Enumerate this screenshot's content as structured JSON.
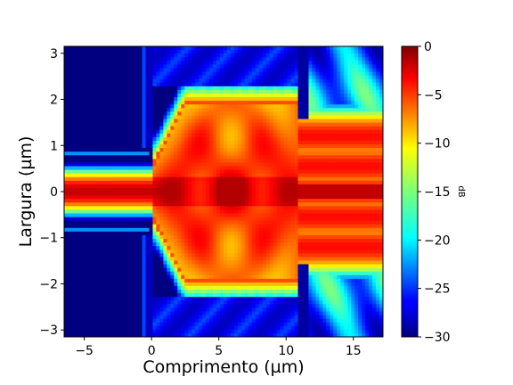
{
  "chart_data": {
    "type": "heatmap",
    "title": "",
    "xlabel": "Comprimento (µm)",
    "ylabel": "Largura (µm)",
    "xlim": [
      -6.5,
      17.2
    ],
    "ylim": [
      -3.15,
      3.15
    ],
    "xticks": [
      -5,
      0,
      5,
      10,
      15
    ],
    "yticks": [
      -3,
      -2,
      -1,
      0,
      1,
      2,
      3
    ],
    "colormap": "jet",
    "colorbar": {
      "label": "dB",
      "range": [
        -30,
        0
      ],
      "ticks": [
        0,
        -5,
        -10,
        -15,
        -20,
        -25,
        -30
      ]
    },
    "structure": {
      "input_waveguide": {
        "x_range": [
          -6.5,
          0
        ],
        "core_half_width": 0.25,
        "field_half_width": 0.6
      },
      "taper": {
        "x_range": [
          0,
          2.5
        ],
        "half_width_end": 2.0
      },
      "multimode_section": {
        "x_range": [
          2.5,
          10.8
        ],
        "half_width": 2.0
      },
      "output_waveguides": {
        "x_range": [
          10.8,
          17.2
        ],
        "centers": [
          -1.2,
          -0.55,
          0,
          0.55,
          1.2
        ]
      }
    },
    "grid": false,
    "legend": "none"
  }
}
